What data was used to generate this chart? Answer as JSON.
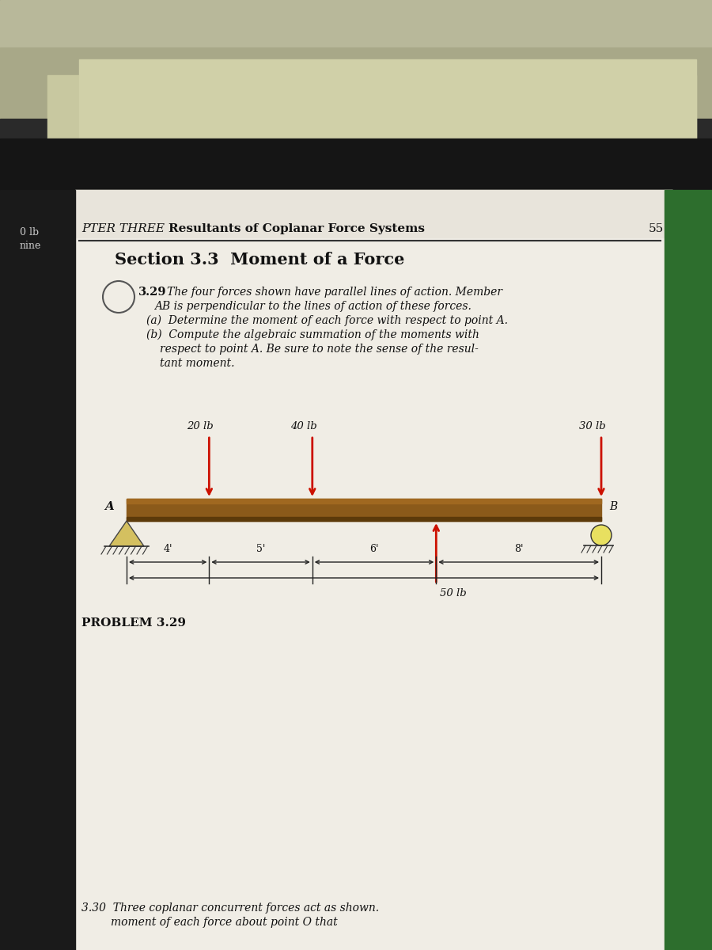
{
  "page_bg": "#e8e4da",
  "ceiling_color": "#d0cdb5",
  "dark_top_color": "#1a1a1a",
  "dark_left_color": "#1a1a1a",
  "green_right_color": "#2d6e2d",
  "paper_color": "#f0ede5",
  "header_text_italic": "PTER THREE",
  "header_text_bold": "Resultants of Coplanar Force Systems",
  "page_number": "55",
  "left_margin_text1": "0 lb",
  "left_margin_text2": "nine",
  "section_title": "Section 3.3  Moment of a Force",
  "prob_num": "3.29",
  "prob_line1": " The four forces shown have parallel lines of action. Member",
  "prob_line2": "AB is perpendicular to the lines of action of these forces.",
  "prob_a": "(a)  Determine the moment of each force with respect to point A.",
  "prob_b1": "(b)  Compute the algebraic summation of the moments with",
  "prob_b2": "     respect to point A. Be sure to note the sense of the resul-",
  "prob_b3": "     tant moment.",
  "beam_color": "#8B5A1A",
  "beam_shadow": "#5C3A0A",
  "arrow_color": "#cc1100",
  "dim_color": "#222222",
  "problem_label": "PROBLEM 3.29",
  "next_prob1": "3.30  Three coplanar concurrent forces act as shown.",
  "next_prob2": "        moment of each force about point O that",
  "dim_labels": [
    "4'",
    "5'",
    "6'",
    "8'"
  ]
}
